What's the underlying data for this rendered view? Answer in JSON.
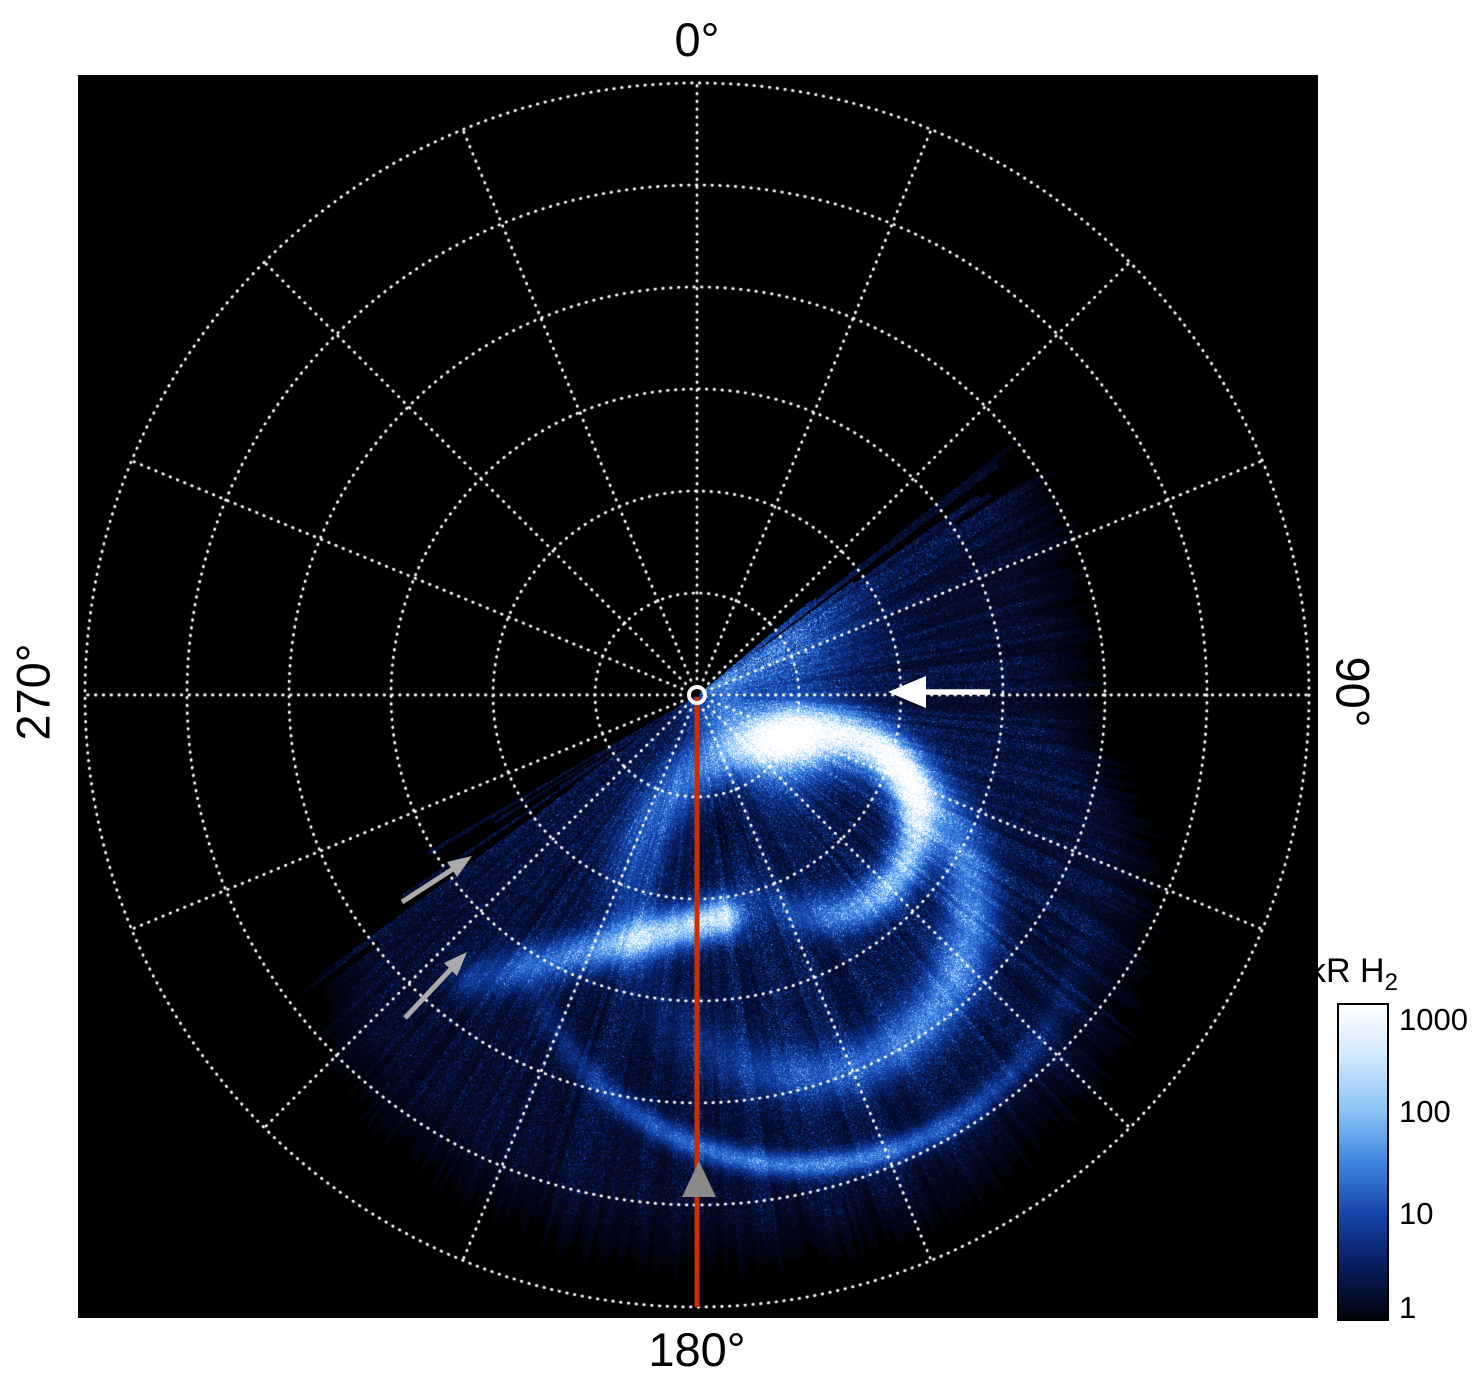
{
  "figure": {
    "type": "polar-auroral-image",
    "background_color": "#ffffff",
    "plot_background_color": "#000000"
  },
  "axis_labels": {
    "top": "0°",
    "right": "90°",
    "bottom": "180°",
    "left": "270°"
  },
  "colorbar": {
    "title_main": "kR H",
    "title_sub": "2",
    "scale": "log",
    "tick_labels": [
      "1000",
      "100",
      "10",
      "1"
    ],
    "gradient": [
      "#ffffff",
      "#cfe8ff",
      "#8cc4f5",
      "#3f86e0",
      "#1644aa",
      "#081c5c",
      "#01030c"
    ]
  },
  "chart_data": {
    "type": "heatmap",
    "projection": "polar",
    "quantity": "H2 auroral emission brightness",
    "units": "kR",
    "value_range": [
      1,
      1000
    ],
    "color_scale": "log",
    "angular_tick_labels": [
      "0°",
      "90°",
      "180°",
      "270°"
    ],
    "grid": {
      "radial_circles": 6,
      "angular_line_spacing_deg": 22.5,
      "line_style": "dotted",
      "line_color": "#ffffff"
    },
    "emission_region": {
      "azimuth_start_deg": 57,
      "azimuth_end_deg": 232,
      "edge_style": "jagged-sawtooth",
      "outer_radius_frac_by_azimuth": [
        [
          57,
          0.68
        ],
        [
          80,
          0.64
        ],
        [
          95,
          0.66
        ],
        [
          110,
          0.8
        ],
        [
          130,
          0.9
        ],
        [
          155,
          0.94
        ],
        [
          190,
          0.93
        ],
        [
          215,
          0.88
        ],
        [
          232,
          0.8
        ]
      ],
      "background_brightness_kr": [
        1,
        50
      ],
      "main_oval_brightness_kr": 1000
    },
    "annotations": {
      "meridian_line": {
        "azimuth_deg": 180,
        "color": "#cc2e00"
      },
      "arrows": [
        {
          "name": "white-arrow",
          "color": "#ffffff",
          "points": "left",
          "location": "along 90° axis"
        },
        {
          "name": "gray-arrow-upper",
          "color": "#aaaaaa",
          "points": "up-right",
          "location": "lower-left jagged edge"
        },
        {
          "name": "gray-arrow-lower",
          "color": "#aaaaaa",
          "points": "up-right",
          "location": "lower-left bright streak"
        },
        {
          "name": "gray-arrowhead",
          "color": "#8a8a8a",
          "points": "up",
          "location": "on 180° meridian line"
        }
      ]
    }
  }
}
